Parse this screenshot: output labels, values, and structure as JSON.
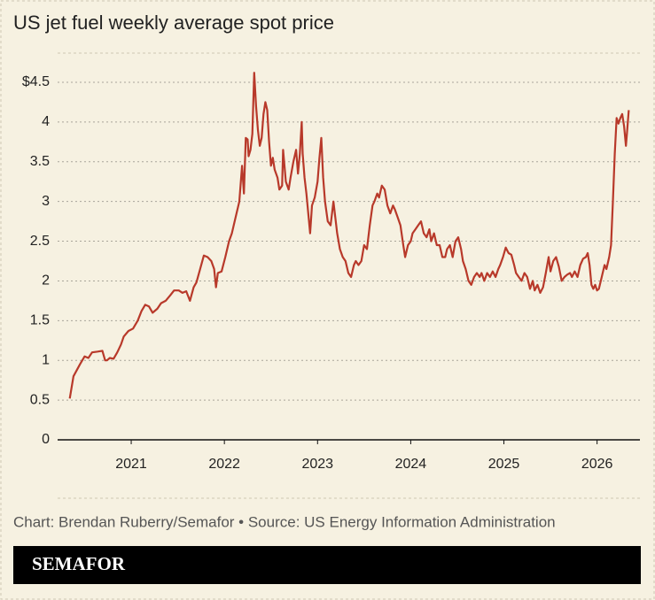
{
  "chart_data": {
    "type": "line",
    "title": "US jet fuel weekly average spot price",
    "color": "#b8392a",
    "x": [
      2020.34,
      2020.38,
      2020.45,
      2020.5,
      2020.54,
      2020.58,
      2020.64,
      2020.69,
      2020.72,
      2020.74,
      2020.77,
      2020.81,
      2020.85,
      2020.89,
      2020.92,
      2020.97,
      2021.02,
      2021.07,
      2021.11,
      2021.15,
      2021.19,
      2021.23,
      2021.28,
      2021.32,
      2021.37,
      2021.42,
      2021.46,
      2021.51,
      2021.55,
      2021.59,
      2021.63,
      2021.67,
      2021.7,
      2021.74,
      2021.78,
      2021.82,
      2021.86,
      2021.89,
      2021.91,
      2021.93,
      2021.97,
      2022.01,
      2022.05,
      2022.08,
      2022.12,
      2022.16,
      2022.19,
      2022.21,
      2022.23,
      2022.25,
      2022.26,
      2022.28,
      2022.3,
      2022.32,
      2022.34,
      2022.36,
      2022.38,
      2022.4,
      2022.42,
      2022.44,
      2022.46,
      2022.48,
      2022.5,
      2022.52,
      2022.54,
      2022.57,
      2022.59,
      2022.62,
      2022.63,
      2022.66,
      2022.69,
      2022.71,
      2022.74,
      2022.77,
      2022.79,
      2022.81,
      2022.83,
      2022.84,
      2022.86,
      2022.88,
      2022.9,
      2022.92,
      2022.94,
      2022.97,
      2023.0,
      2023.02,
      2023.04,
      2023.06,
      2023.08,
      2023.11,
      2023.14,
      2023.17,
      2023.19,
      2023.21,
      2023.24,
      2023.27,
      2023.3,
      2023.33,
      2023.36,
      2023.39,
      2023.41,
      2023.44,
      2023.47,
      2023.5,
      2023.53,
      2023.56,
      2023.59,
      2023.61,
      2023.64,
      2023.66,
      2023.69,
      2023.72,
      2023.75,
      2023.78,
      2023.81,
      2023.83,
      2023.86,
      2023.89,
      2023.92,
      2023.94,
      2023.97,
      2024.0,
      2024.02,
      2024.05,
      2024.08,
      2024.11,
      2024.14,
      2024.17,
      2024.2,
      2024.22,
      2024.25,
      2024.28,
      2024.31,
      2024.34,
      2024.37,
      2024.39,
      2024.42,
      2024.45,
      2024.48,
      2024.51,
      2024.54,
      2024.56,
      2024.59,
      2024.62,
      2024.65,
      2024.68,
      2024.71,
      2024.74,
      2024.76,
      2024.79,
      2024.82,
      2024.85,
      2024.88,
      2024.91,
      2024.94,
      2024.96,
      2024.99,
      2025.02,
      2025.05,
      2025.08,
      2025.11,
      2025.13,
      2025.16,
      2025.19,
      2025.22,
      2025.25,
      2025.28,
      2025.31,
      2025.33,
      2025.36,
      2025.39,
      2025.42,
      2025.45,
      2025.48,
      2025.5,
      2025.53,
      2025.56,
      2025.59,
      2025.62,
      2025.65,
      2025.68,
      2025.71,
      2025.73,
      2025.76,
      2025.79,
      2025.82,
      2025.85,
      2025.88,
      2025.9,
      2025.92,
      2025.94,
      2025.96,
      2025.98,
      2026.0,
      2026.02,
      2026.05,
      2026.08,
      2026.1,
      2026.13,
      2026.15,
      2026.17,
      2026.19,
      2026.21,
      2026.23,
      2026.25,
      2026.27,
      2026.29,
      2026.31,
      2026.32,
      2026.34
    ],
    "values": [
      0.52,
      0.8,
      0.95,
      1.05,
      1.03,
      1.1,
      1.11,
      1.12,
      1.0,
      1.0,
      1.03,
      1.02,
      1.1,
      1.2,
      1.3,
      1.37,
      1.4,
      1.5,
      1.62,
      1.7,
      1.68,
      1.6,
      1.65,
      1.72,
      1.75,
      1.82,
      1.88,
      1.88,
      1.85,
      1.87,
      1.75,
      1.92,
      1.98,
      2.15,
      2.32,
      2.3,
      2.25,
      2.15,
      1.92,
      2.1,
      2.12,
      2.3,
      2.5,
      2.6,
      2.8,
      3.0,
      3.45,
      3.1,
      3.8,
      3.78,
      3.57,
      3.65,
      3.85,
      4.62,
      4.2,
      3.9,
      3.7,
      3.8,
      4.1,
      4.25,
      4.15,
      3.75,
      3.45,
      3.55,
      3.4,
      3.3,
      3.15,
      3.2,
      3.65,
      3.25,
      3.15,
      3.3,
      3.5,
      3.65,
      3.35,
      3.6,
      4.0,
      3.6,
      3.3,
      3.1,
      2.85,
      2.6,
      2.95,
      3.05,
      3.25,
      3.55,
      3.8,
      3.3,
      3.0,
      2.75,
      2.7,
      3.0,
      2.8,
      2.6,
      2.4,
      2.3,
      2.25,
      2.1,
      2.05,
      2.2,
      2.25,
      2.2,
      2.25,
      2.45,
      2.4,
      2.7,
      2.95,
      3.0,
      3.1,
      3.05,
      3.2,
      3.15,
      2.95,
      2.85,
      2.95,
      2.9,
      2.8,
      2.7,
      2.45,
      2.3,
      2.45,
      2.5,
      2.6,
      2.65,
      2.7,
      2.75,
      2.6,
      2.55,
      2.65,
      2.5,
      2.6,
      2.45,
      2.45,
      2.3,
      2.3,
      2.4,
      2.45,
      2.3,
      2.5,
      2.55,
      2.4,
      2.25,
      2.15,
      2.0,
      1.95,
      2.05,
      2.1,
      2.05,
      2.1,
      2.0,
      2.1,
      2.05,
      2.12,
      2.05,
      2.15,
      2.2,
      2.3,
      2.42,
      2.35,
      2.33,
      2.2,
      2.1,
      2.05,
      2.0,
      2.1,
      2.05,
      1.9,
      2.0,
      1.88,
      1.95,
      1.85,
      1.92,
      2.1,
      2.3,
      2.12,
      2.25,
      2.3,
      2.18,
      2.0,
      2.05,
      2.08,
      2.1,
      2.05,
      2.12,
      2.05,
      2.2,
      2.28,
      2.3,
      2.35,
      2.2,
      1.95,
      1.9,
      1.95,
      1.88,
      1.9,
      2.05,
      2.2,
      2.15,
      2.3,
      2.45,
      3.0,
      3.6,
      4.05,
      3.98,
      4.05,
      4.1,
      3.95,
      3.7,
      3.85,
      4.15
    ],
    "xlim": [
      2020.21,
      2026.46
    ],
    "xticks": [
      2021,
      2022,
      2023,
      2024,
      2025,
      2026
    ],
    "ylim": [
      0,
      4.5
    ],
    "yticks": [
      0,
      0.5,
      1,
      1.5,
      2,
      2.5,
      3,
      3.5,
      4,
      {
        "value": 4.5,
        "label": "$4.5"
      }
    ],
    "grid": true,
    "source": "Chart: Brendan Ruberry/Semafor • Source: US Energy Information Administration",
    "brand": "SEMAFOR"
  }
}
